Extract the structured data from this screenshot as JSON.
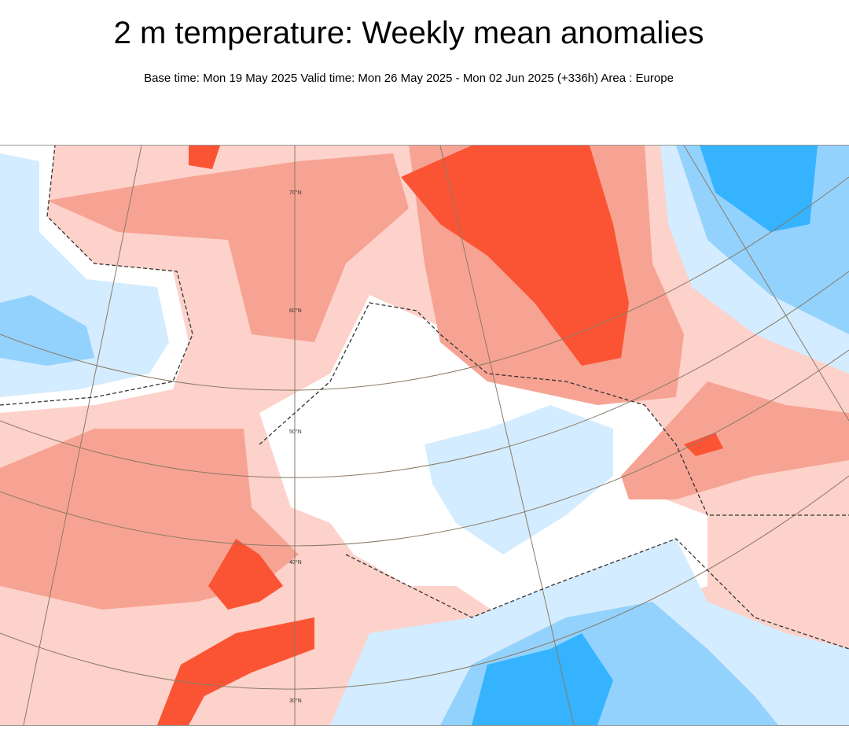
{
  "header": {
    "title": "2 m temperature: Weekly mean anomalies",
    "subtitle": "Base time: Mon 19 May 2025 Valid time: Mon 26 May 2025 - Mon 02 Jun 2025 (+336h) Area : Europe"
  },
  "map": {
    "area": "Europe",
    "latitude_labels": [
      "70°N",
      "60°N",
      "50°N",
      "40°N",
      "30°N"
    ],
    "colors": {
      "warm_light": "#fcd2ca",
      "warm_mid": "#f7a393",
      "warm_strong": "#fb5434",
      "neutral": "#ffffff",
      "cold_light": "#d3ecff",
      "cold_mid": "#93d2fd",
      "cold_strong": "#35b3ff"
    }
  }
}
